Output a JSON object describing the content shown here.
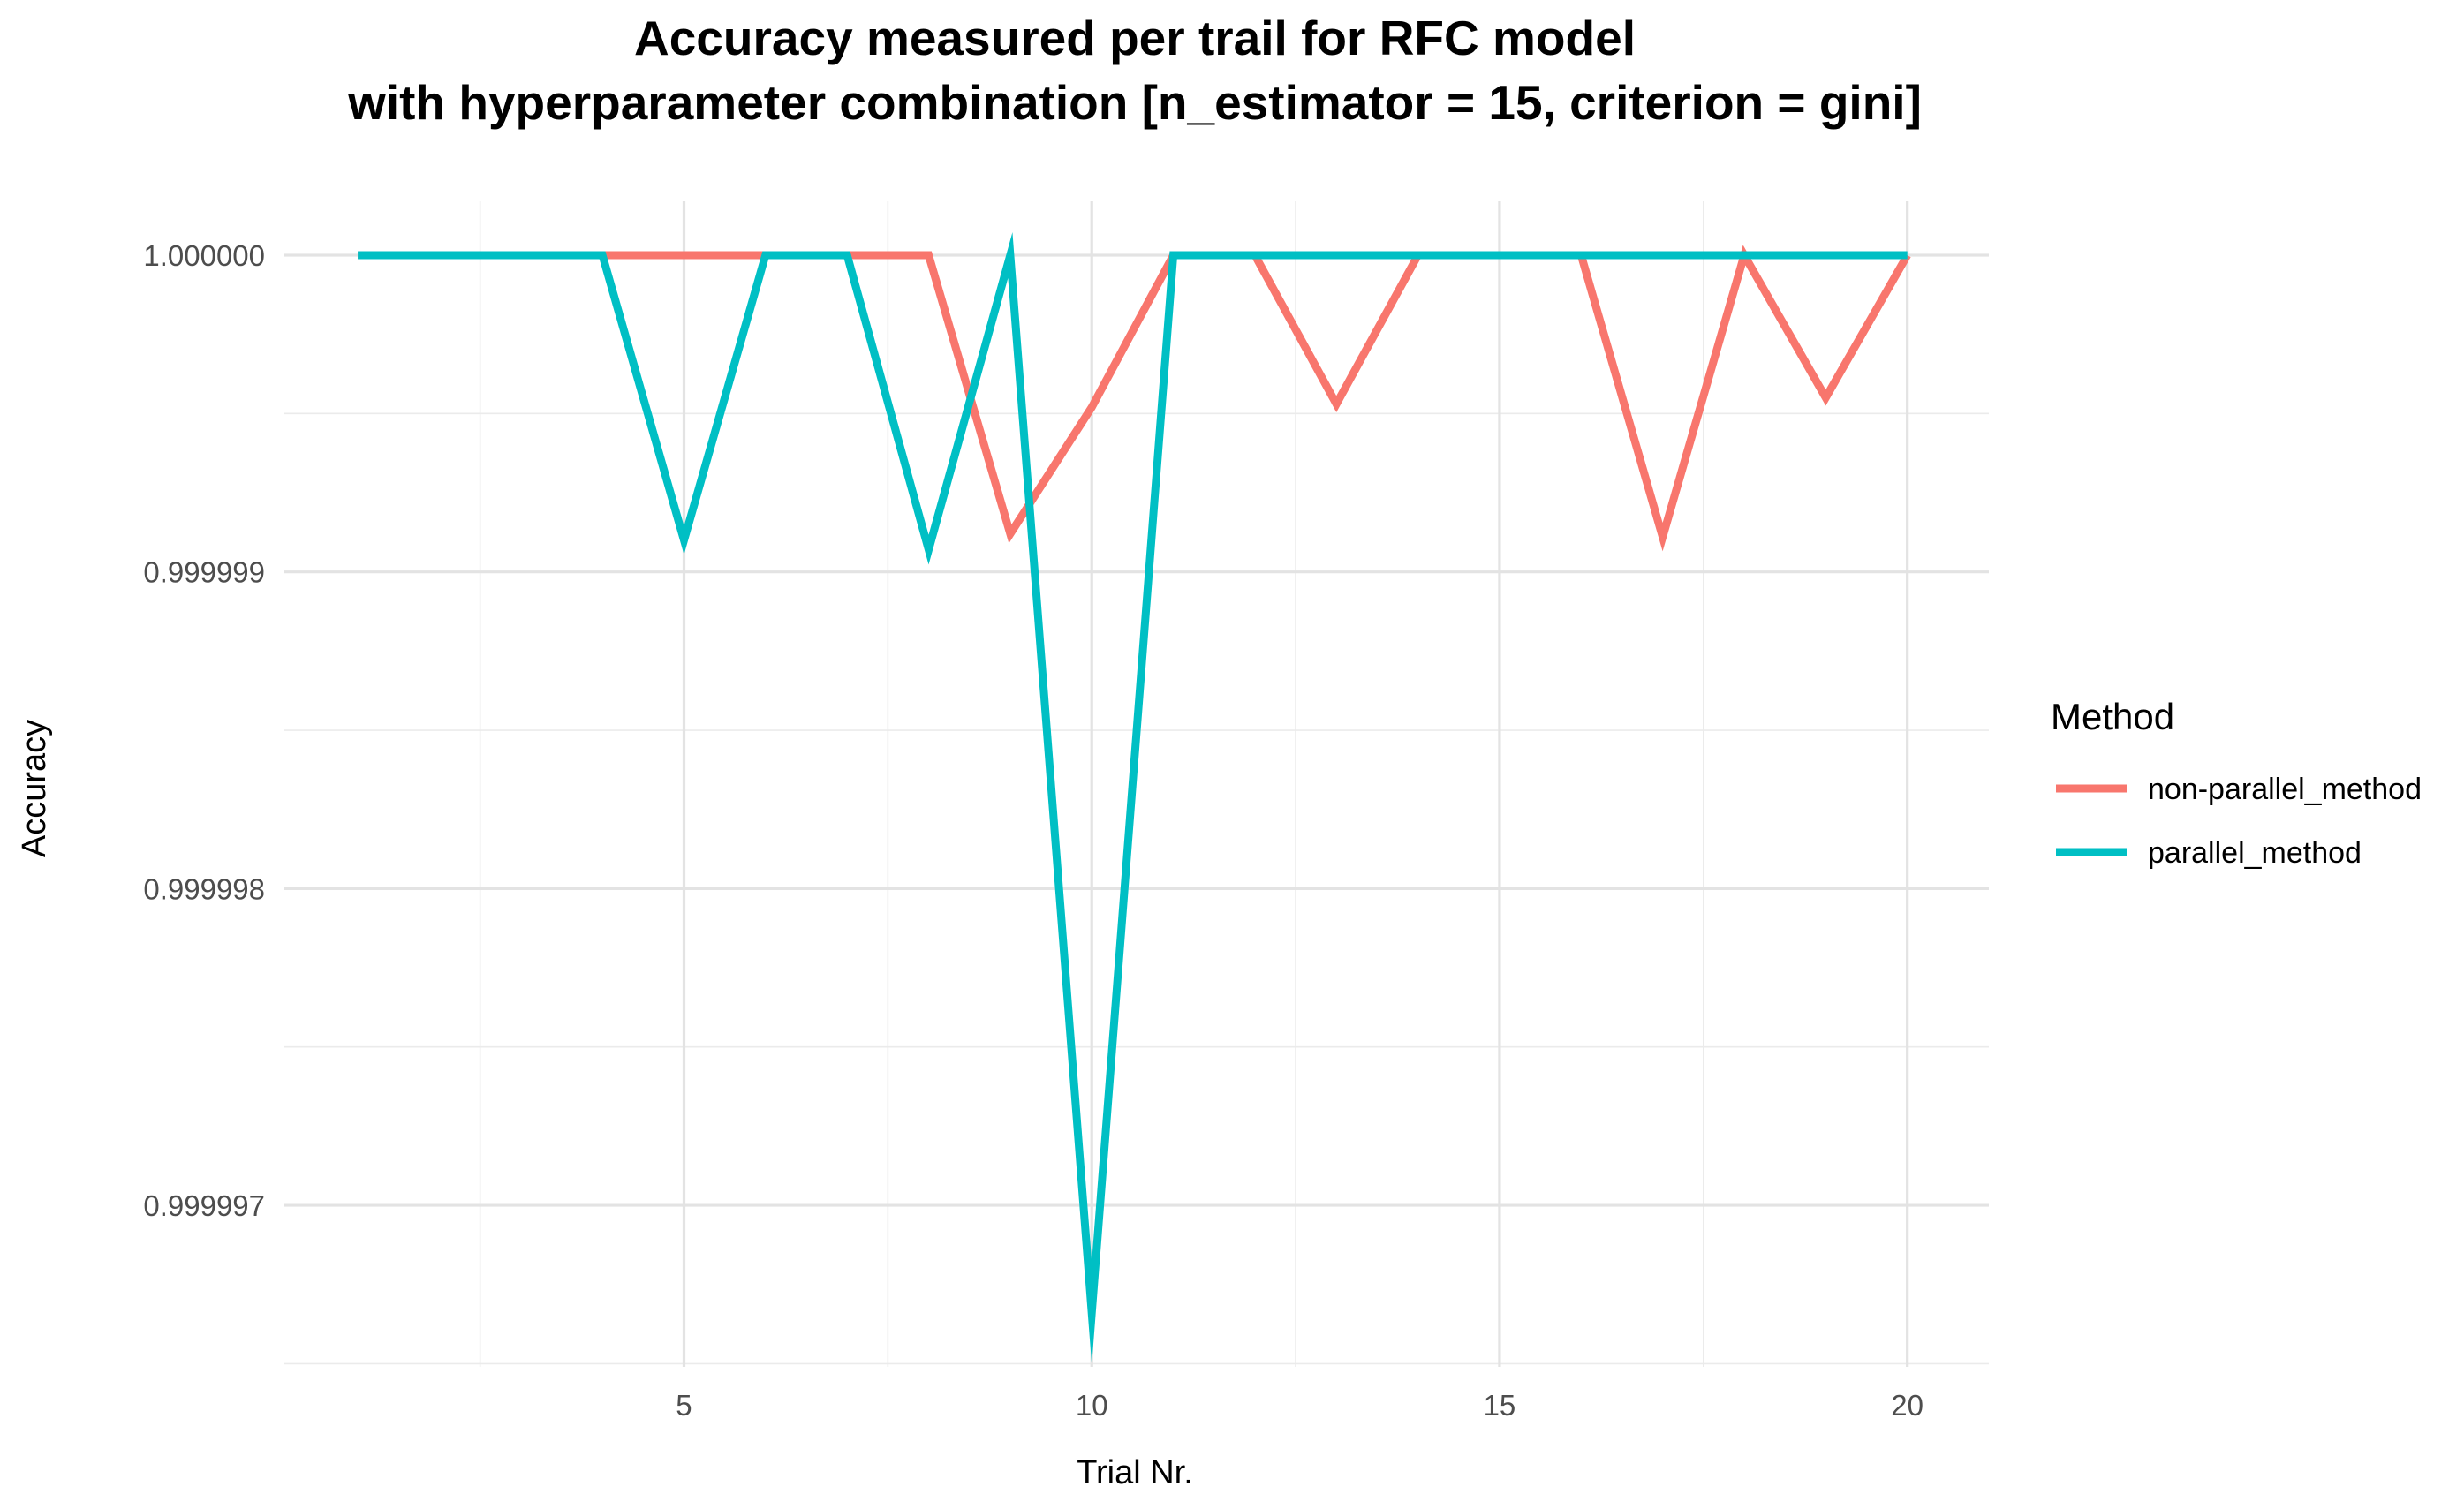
{
  "chart_data": {
    "type": "line",
    "title": "Accuracy measured per trail for RFC model",
    "subtitle": "with hyperparameter combination [n_estimator = 15, criterion = gini]",
    "xlabel": "Trial Nr.",
    "ylabel": "Accuracy",
    "x": [
      1,
      2,
      3,
      4,
      5,
      6,
      7,
      8,
      9,
      10,
      11,
      12,
      13,
      14,
      15,
      16,
      17,
      18,
      19,
      20
    ],
    "xlim": [
      0.1,
      21.0
    ],
    "ylim": [
      0.99999649,
      1.00000017
    ],
    "x_ticks": [
      5,
      10,
      15,
      20
    ],
    "x_tick_labels": [
      "5",
      "10",
      "15",
      "20"
    ],
    "y_ticks": [
      0.999997,
      0.999998,
      0.999999,
      1.0
    ],
    "y_tick_labels": [
      "0.999997",
      "0.999998",
      "0.999999",
      "1.000000"
    ],
    "grid": true,
    "legend_position": "right",
    "legend_title": "Method",
    "series": [
      {
        "name": "non-parallel_method",
        "color": "#F8766D",
        "values": [
          1.0,
          1.0,
          1.0,
          1.0,
          1.0,
          1.0,
          1.0,
          1.0,
          0.99999912,
          0.99999952,
          1.0,
          1.0,
          0.99999953,
          1.0,
          1.0,
          1.0,
          0.99999911,
          1.0,
          0.99999955,
          1.0
        ]
      },
      {
        "name": "parallel_method",
        "color": "#00BFC4",
        "values": [
          1.0,
          1.0,
          1.0,
          1.0,
          0.9999991,
          1.0,
          1.0,
          0.99999907,
          1.0,
          0.99999666,
          1.0,
          1.0,
          1.0,
          1.0,
          1.0,
          1.0,
          1.0,
          1.0,
          1.0,
          1.0
        ]
      }
    ]
  }
}
